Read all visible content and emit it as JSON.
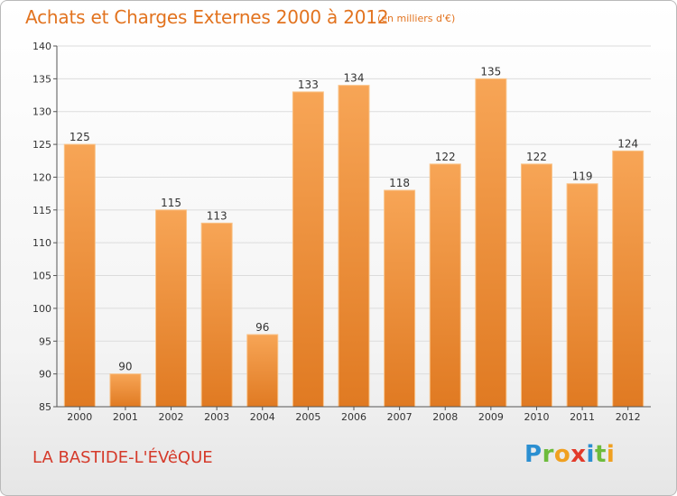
{
  "title": "Achats et Charges Externes 2000 à 2012",
  "subtitle": "(en milliers d'€)",
  "commune": "LA BASTIDE-L'ÉVêQUE",
  "logo": {
    "letters": [
      "P",
      "r",
      "o",
      "x",
      "i",
      "t",
      "i"
    ],
    "colors": [
      "#2b8fd1",
      "#6dbb3c",
      "#f0a020",
      "#e23a2a",
      "#2b8fd1",
      "#6dbb3c",
      "#f0a020"
    ]
  },
  "colors": {
    "bar_top": "#f7a556",
    "bar_bottom": "#e07a22",
    "title": "#e2731f",
    "commune": "#d53a2a"
  },
  "chart_data": {
    "type": "bar",
    "title": "Achats et Charges Externes 2000 à 2012",
    "subtitle": "(en milliers d'€)",
    "categories": [
      "2000",
      "2001",
      "2002",
      "2003",
      "2004",
      "2005",
      "2006",
      "2007",
      "2008",
      "2009",
      "2010",
      "2011",
      "2012"
    ],
    "values": [
      125,
      90,
      115,
      113,
      96,
      133,
      134,
      118,
      122,
      135,
      122,
      119,
      124
    ],
    "ylim": [
      85,
      140
    ],
    "yticks": [
      85,
      90,
      95,
      100,
      105,
      110,
      115,
      120,
      125,
      130,
      135,
      140
    ],
    "grid": true,
    "legend": "none"
  }
}
